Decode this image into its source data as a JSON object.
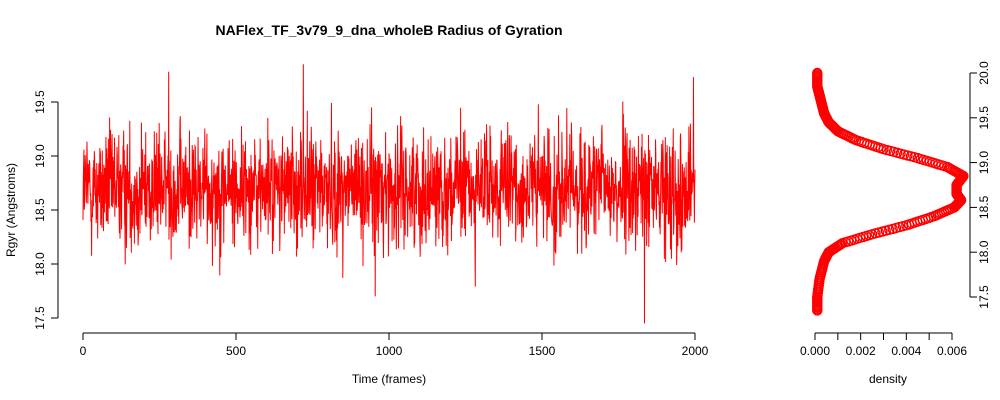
{
  "chart_data": [
    {
      "type": "line",
      "title": "NAFlex_TF_3v79_9_dna_wholeB Radius of Gyration",
      "xlabel": "Time (frames)",
      "ylabel": "Rgyr (Angstroms)",
      "xlim": [
        0,
        2000
      ],
      "ylim": [
        17.5,
        19.8
      ],
      "xticks": [
        "0",
        "500",
        "1000",
        "1500",
        "2000"
      ],
      "yticks": [
        "17.5",
        "18.0",
        "18.5",
        "19.0",
        "19.5"
      ],
      "color": "#ff0000",
      "series": [
        {
          "frames": 2000,
          "mean": 18.7,
          "range": [
            17.45,
            19.85
          ],
          "notable_points": [
            {
              "x": 280,
              "y": 19.78
            },
            {
              "x": 720,
              "y": 19.85
            },
            {
              "x": 955,
              "y": 17.7
            },
            {
              "x": 1835,
              "y": 17.45
            },
            {
              "x": 1995,
              "y": 19.73
            }
          ]
        }
      ]
    },
    {
      "type": "line",
      "xlabel": "density",
      "xlim": [
        0,
        0.0065
      ],
      "ylim": [
        17.35,
        20.0
      ],
      "xticks": [
        "0.000",
        "0.002",
        "0.004",
        "0.006"
      ],
      "yticks": [
        "17.5",
        "18.0",
        "18.5",
        "19.0",
        "19.5",
        "20.0"
      ],
      "color": "#ff0000",
      "points": [
        {
          "y": 17.35,
          "density": 0.0001
        },
        {
          "y": 17.5,
          "density": 0.0001
        },
        {
          "y": 17.7,
          "density": 0.0002
        },
        {
          "y": 17.9,
          "density": 0.0004
        },
        {
          "y": 18.0,
          "density": 0.0006
        },
        {
          "y": 18.1,
          "density": 0.0012
        },
        {
          "y": 18.2,
          "density": 0.0025
        },
        {
          "y": 18.3,
          "density": 0.004
        },
        {
          "y": 18.4,
          "density": 0.0052
        },
        {
          "y": 18.5,
          "density": 0.0061
        },
        {
          "y": 18.58,
          "density": 0.0064
        },
        {
          "y": 18.65,
          "density": 0.0062
        },
        {
          "y": 18.75,
          "density": 0.0062
        },
        {
          "y": 18.85,
          "density": 0.0065
        },
        {
          "y": 18.95,
          "density": 0.0058
        },
        {
          "y": 19.05,
          "density": 0.0045
        },
        {
          "y": 19.15,
          "density": 0.003
        },
        {
          "y": 19.25,
          "density": 0.0018
        },
        {
          "y": 19.35,
          "density": 0.001
        },
        {
          "y": 19.45,
          "density": 0.0006
        },
        {
          "y": 19.55,
          "density": 0.0004
        },
        {
          "y": 19.65,
          "density": 0.0003
        },
        {
          "y": 19.75,
          "density": 0.0002
        },
        {
          "y": 19.85,
          "density": 0.0001
        },
        {
          "y": 20.0,
          "density": 0.0001
        }
      ]
    }
  ]
}
